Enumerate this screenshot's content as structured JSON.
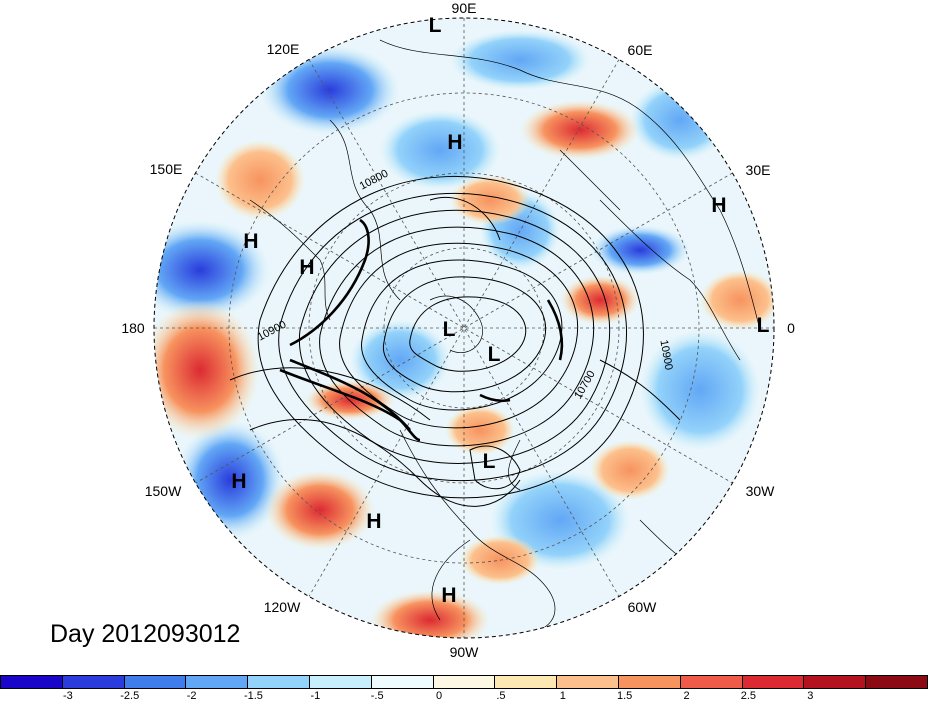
{
  "map": {
    "projection": "north-polar-stereographic",
    "longitude_labels": [
      {
        "id": "lon-90e",
        "text": "90E"
      },
      {
        "id": "lon-60e",
        "text": "60E"
      },
      {
        "id": "lon-30e",
        "text": "30E"
      },
      {
        "id": "lon-0",
        "text": "0"
      },
      {
        "id": "lon-30w",
        "text": "30W"
      },
      {
        "id": "lon-60w",
        "text": "60W"
      },
      {
        "id": "lon-90w",
        "text": "90W"
      },
      {
        "id": "lon-120w",
        "text": "120W"
      },
      {
        "id": "lon-150w",
        "text": "150W"
      },
      {
        "id": "lon-180",
        "text": "180"
      },
      {
        "id": "lon-150e",
        "text": "150E"
      },
      {
        "id": "lon-120e",
        "text": "120E"
      }
    ],
    "pressure_centers": [
      {
        "id": "center-l-1",
        "text": "L"
      },
      {
        "id": "center-h-1",
        "text": "H"
      },
      {
        "id": "center-h-2",
        "text": "H"
      },
      {
        "id": "center-h-3",
        "text": "H"
      },
      {
        "id": "center-h-4",
        "text": "H"
      },
      {
        "id": "center-l-2",
        "text": "L"
      },
      {
        "id": "center-l-3",
        "text": "L"
      },
      {
        "id": "center-l-4",
        "text": "L"
      },
      {
        "id": "center-l-5",
        "text": "L"
      },
      {
        "id": "center-h-5",
        "text": "H"
      },
      {
        "id": "center-h-6",
        "text": "H"
      },
      {
        "id": "center-h-7",
        "text": "H"
      }
    ],
    "contour_labels": [
      {
        "id": "contour-10800",
        "text": "10800"
      },
      {
        "id": "contour-10900-w",
        "text": "10900"
      },
      {
        "id": "contour-10700",
        "text": "10700"
      },
      {
        "id": "contour-10900-e",
        "text": "10900"
      }
    ],
    "day_label": "Day 2012093012"
  },
  "colorbar": {
    "colors": [
      "#1a06c8",
      "#2a3cdc",
      "#3f7ded",
      "#62a7f5",
      "#93d2fa",
      "#c6eefb",
      "#eefcfd",
      "#fdf8e3",
      "#fde8b4",
      "#fcc08c",
      "#f7935f",
      "#f05a48",
      "#dc2a32",
      "#b4121e",
      "#8c0a14"
    ],
    "ticks": [
      "-3",
      "-2.5",
      "-2",
      "-1.5",
      "-1",
      "-.5",
      "0",
      ".5",
      "1",
      "1.5",
      "2",
      "2.5",
      "3"
    ]
  }
}
